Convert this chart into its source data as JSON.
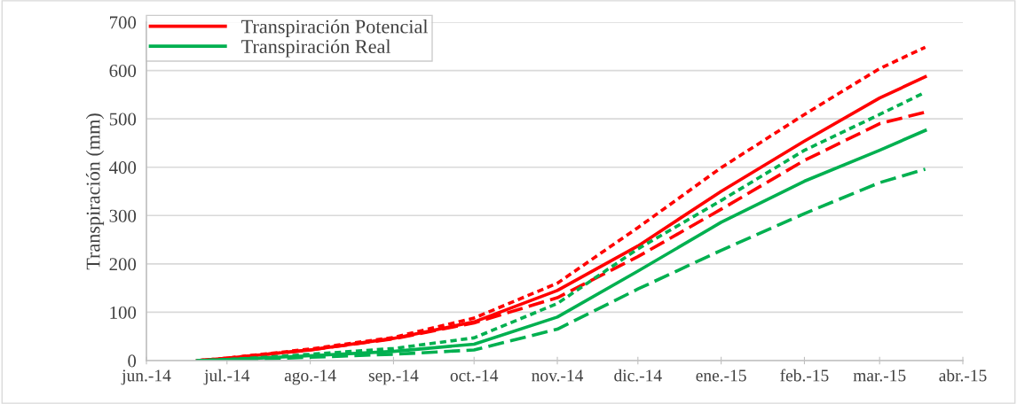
{
  "chart_data": {
    "type": "line",
    "ylabel": "Transpiración (mm)",
    "x": [
      "2014-06-20",
      "2014-07-01",
      "2014-08-01",
      "2014-09-01",
      "2014-10-01",
      "2014-11-01",
      "2014-12-01",
      "2015-01-01",
      "2015-02-01",
      "2015-03-01",
      "2015-03-18"
    ],
    "series": [
      {
        "name": "Transpiración Potencial",
        "color": "#ff0000",
        "line_style": "solid",
        "values": [
          0,
          5,
          22,
          46,
          80,
          145,
          237,
          350,
          454,
          543,
          587
        ]
      },
      {
        "color": "#ff0000",
        "line_style": "dotted",
        "values": [
          0,
          5,
          24,
          48,
          88,
          160,
          275,
          399,
          509,
          604,
          648
        ]
      },
      {
        "color": "#ff0000",
        "line_style": "dashed",
        "values": [
          0,
          5,
          22,
          45,
          78,
          130,
          215,
          313,
          414,
          490,
          514
        ]
      },
      {
        "name": "Transpiración Real",
        "color": "#00b050",
        "line_style": "solid",
        "values": [
          0,
          2,
          10,
          19,
          34,
          90,
          185,
          286,
          371,
          435,
          476
        ]
      },
      {
        "color": "#00b050",
        "line_style": "dotted",
        "values": [
          0,
          2,
          13,
          25,
          47,
          118,
          231,
          331,
          435,
          509,
          555
        ]
      },
      {
        "color": "#00b050",
        "line_style": "dashed",
        "values": [
          0,
          1,
          7,
          13,
          22,
          65,
          148,
          228,
          304,
          368,
          396
        ]
      }
    ],
    "xlim": [
      "2014-06",
      "2015-04"
    ],
    "xticks": [
      {
        "value": "2014-06",
        "label": "jun.-14"
      },
      {
        "value": "2014-07",
        "label": "jul.-14"
      },
      {
        "value": "2014-08",
        "label": "ago.-14"
      },
      {
        "value": "2014-09",
        "label": "sep.-14"
      },
      {
        "value": "2014-10",
        "label": "oct.-14"
      },
      {
        "value": "2014-11",
        "label": "nov.-14"
      },
      {
        "value": "2014-12",
        "label": "dic.-14"
      },
      {
        "value": "2015-01",
        "label": "ene.-15"
      },
      {
        "value": "2015-02",
        "label": "feb.-15"
      },
      {
        "value": "2015-03",
        "label": "mar.-15"
      },
      {
        "value": "2015-04",
        "label": "abr.-15"
      }
    ],
    "ylim": [
      0,
      700
    ],
    "yticks": [
      0,
      100,
      200,
      300,
      400,
      500,
      600,
      700
    ],
    "grid": "y",
    "legend": "top left",
    "marker": "none"
  }
}
